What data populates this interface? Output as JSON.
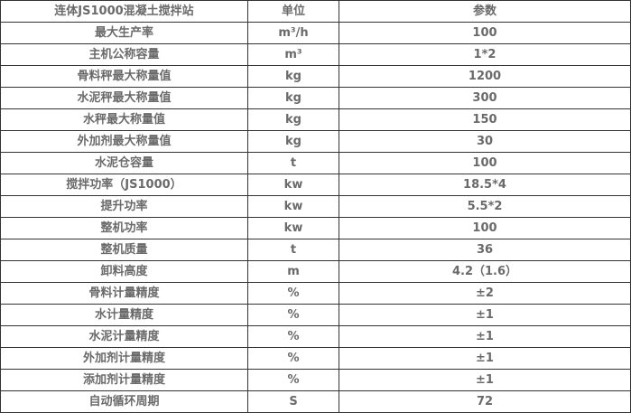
{
  "header": [
    "连体JS1000混凝土搅拌站",
    "单位",
    "参数"
  ],
  "rows": [
    {
      "name": "最大生产率",
      "unit": "m³/h",
      "value": "100"
    },
    {
      "name": "主机公称容量",
      "unit": "m³",
      "value": "1*2"
    },
    {
      "name": "骨料秤最大称量值",
      "unit": "kg",
      "value": "1200"
    },
    {
      "name": "水泥秤最大称量值",
      "unit": "kg",
      "value": "300"
    },
    {
      "name": "水秤最大称量值",
      "unit": "kg",
      "value": "150"
    },
    {
      "name": "外加剂最大称量值",
      "unit": "kg",
      "value": "30"
    },
    {
      "name": "水泥仓容量",
      "unit": "t",
      "value": "100"
    },
    {
      "name": "搅拌功率（JS1000）",
      "unit": "kw",
      "value": "18.5*4"
    },
    {
      "name": "提升功率",
      "unit": "kw",
      "value": "5.5*2"
    },
    {
      "name": "整机功率",
      "unit": "kw",
      "value": "100"
    },
    {
      "name": "整机质量",
      "unit": "t",
      "value": "36"
    },
    {
      "name": "卸料高度",
      "unit": "m",
      "value": "4.2（1.6）"
    },
    {
      "name": "骨料计量精度",
      "unit": "%",
      "value": "±2"
    },
    {
      "name": "水计量精度",
      "unit": "%",
      "value": "±1"
    },
    {
      "name": "水泥计量精度",
      "unit": "%",
      "value": "±1"
    },
    {
      "name": "外加剂计量精度",
      "unit": "%",
      "value": "±1"
    },
    {
      "name": "添加剂计量精度",
      "unit": "%",
      "value": "±1"
    },
    {
      "name": "自动循环周期",
      "unit": "S",
      "value": "72"
    }
  ]
}
